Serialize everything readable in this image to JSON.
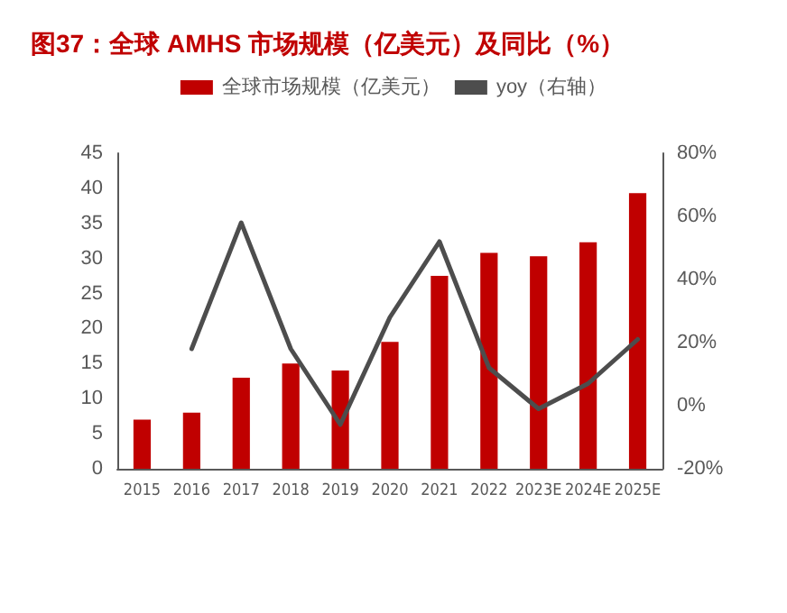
{
  "chart_data": {
    "type": "bar",
    "title": "图37：全球 AMHS 市场规模（亿美元）及同比（%）",
    "categories": [
      "2015",
      "2016",
      "2017",
      "2018",
      "2019",
      "2020",
      "2021",
      "2022",
      "2023E",
      "2024E",
      "2025E"
    ],
    "series": [
      {
        "name": "全球市场规模（亿美元）",
        "color": "#c00000",
        "values": [
          7.0,
          8.0,
          13.0,
          15.0,
          14.0,
          18.1,
          27.5,
          30.8,
          30.3,
          32.3,
          39.3
        ]
      },
      {
        "name": "yoy（右轴）",
        "type": "line",
        "axis": "y2",
        "color": "#4d4d4d",
        "values": [
          null,
          18,
          58,
          18,
          -6,
          28,
          52,
          12,
          -1,
          7,
          21
        ]
      }
    ],
    "ylim": [
      0,
      45
    ],
    "yticks": [
      0,
      5,
      10,
      15,
      20,
      25,
      30,
      35,
      40,
      45
    ],
    "y2lim": [
      -20,
      80
    ],
    "y2ticks": [
      {
        "value": -20,
        "label": "-20%"
      },
      {
        "value": 0,
        "label": "0%"
      },
      {
        "value": 20,
        "label": "20%"
      },
      {
        "value": 40,
        "label": "40%"
      },
      {
        "value": 60,
        "label": "60%"
      },
      {
        "value": 80,
        "label": "80%"
      }
    ],
    "legend": "top",
    "grid": false,
    "marker": "none",
    "line_style": "solid"
  }
}
